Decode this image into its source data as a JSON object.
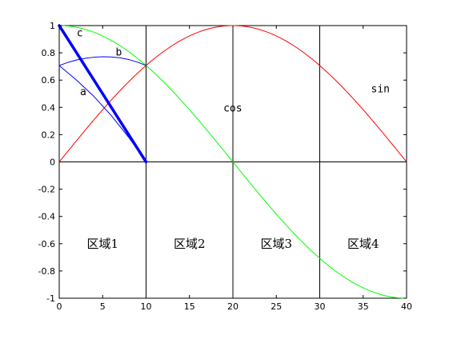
{
  "chart_data": {
    "type": "line",
    "title": "",
    "xlabel": "",
    "ylabel": "",
    "xlim": [
      0,
      40
    ],
    "ylim": [
      -1,
      1
    ],
    "xticks": [
      0,
      5,
      10,
      15,
      20,
      25,
      30,
      35,
      40
    ],
    "yticks": [
      -1,
      -0.8,
      -0.6,
      -0.4,
      -0.2,
      0,
      0.2,
      0.4,
      0.6,
      0.8,
      1
    ],
    "xtick_labels": [
      "0",
      "5",
      "10",
      "15",
      "20",
      "25",
      "30",
      "35",
      "40"
    ],
    "ytick_labels": [
      "-1",
      "-0.8",
      "-0.6",
      "-0.4",
      "-0.2",
      "0",
      "0.2",
      "0.4",
      "0.6",
      "0.8",
      "1"
    ],
    "grid": false,
    "vertical_lines": [
      10,
      20,
      30
    ],
    "horizontal_lines": [
      0
    ],
    "series": [
      {
        "name": "sin",
        "color": "#ff0000",
        "x": [
          0,
          2,
          4,
          6,
          8,
          10,
          12,
          14,
          16,
          18,
          20,
          22,
          24,
          26,
          28,
          30,
          32,
          34,
          36,
          38,
          40
        ],
        "y": [
          0,
          0.156,
          0.309,
          0.454,
          0.588,
          0.707,
          0.809,
          0.891,
          0.951,
          0.988,
          1.0,
          0.988,
          0.951,
          0.891,
          0.809,
          0.707,
          0.588,
          0.454,
          0.309,
          0.156,
          0
        ]
      },
      {
        "name": "cos",
        "color": "#00ff00",
        "x": [
          0,
          2,
          4,
          6,
          8,
          10,
          12,
          14,
          16,
          18,
          20,
          22,
          24,
          26,
          28,
          30,
          32,
          34,
          36,
          38,
          40
        ],
        "y": [
          1,
          0.988,
          0.951,
          0.891,
          0.809,
          0.707,
          0.588,
          0.454,
          0.309,
          0.156,
          0,
          -0.156,
          -0.309,
          -0.454,
          -0.588,
          -0.707,
          -0.809,
          -0.891,
          -0.951,
          -0.988,
          -1
        ]
      },
      {
        "name": "a",
        "color": "#0000ff",
        "x": [
          0,
          2,
          4,
          6,
          8,
          10
        ],
        "y": [
          0.707,
          0.6,
          0.48,
          0.34,
          0.18,
          0
        ]
      },
      {
        "name": "b",
        "color": "#0000ff",
        "x": [
          0,
          1,
          2,
          3,
          4,
          5,
          6,
          7,
          8,
          9,
          10
        ],
        "y": [
          0.707,
          0.73,
          0.748,
          0.76,
          0.768,
          0.771,
          0.77,
          0.764,
          0.751,
          0.732,
          0.707
        ]
      },
      {
        "name": "c",
        "color": "#0000ff",
        "x": [
          0,
          2,
          4,
          6,
          8,
          10
        ],
        "y": [
          1,
          0.8,
          0.6,
          0.4,
          0.2,
          0
        ]
      }
    ],
    "curve_labels": [
      {
        "text": "c",
        "x": 2.0,
        "y": 0.92
      },
      {
        "text": "b",
        "x": 6.5,
        "y": 0.78
      },
      {
        "text": "a",
        "x": 2.4,
        "y": 0.49
      },
      {
        "text": "cos",
        "x": 18.9,
        "y": 0.37
      },
      {
        "text": "sin",
        "x": 35.9,
        "y": 0.51
      }
    ],
    "region_labels": [
      {
        "text": "区域1",
        "x": 5.0,
        "y": -0.6
      },
      {
        "text": "区域2",
        "x": 15.0,
        "y": -0.6
      },
      {
        "text": "区域3",
        "x": 25.0,
        "y": -0.6
      },
      {
        "text": "区域4",
        "x": 35.0,
        "y": -0.6
      }
    ]
  }
}
